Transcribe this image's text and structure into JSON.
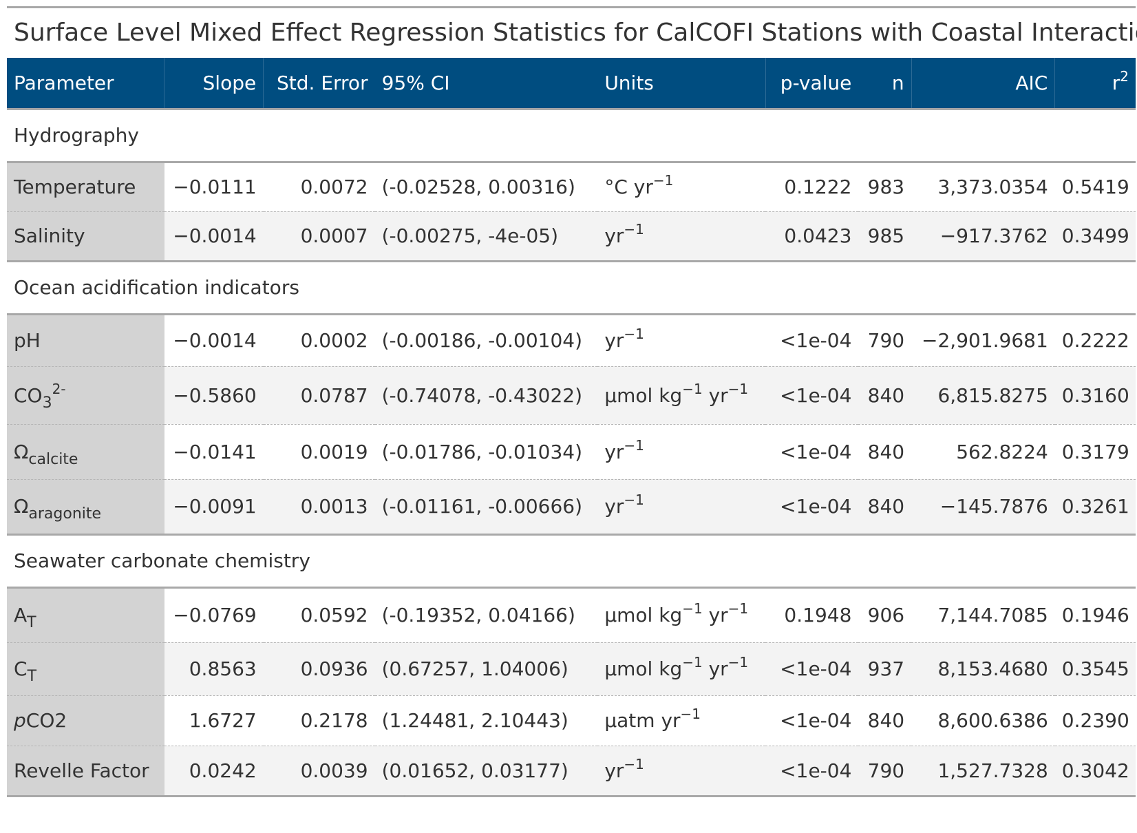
{
  "title": "Surface Level Mixed Effect Regression Statistics for CalCOFI Stations with Coastal Interaction",
  "headers": {
    "parameter": "Parameter",
    "slope": "Slope",
    "std_error": "Std. Error",
    "ci": "95% CI",
    "units": "Units",
    "p_value": "p-value",
    "n": "n",
    "aic": "AIC",
    "r2_base": "r",
    "r2_sup": "2"
  },
  "groups": [
    {
      "label": "Hydrography",
      "rows": [
        {
          "param": "Temperature",
          "slope": "−0.0111",
          "se": "0.0072",
          "ci": "(-0.02528, 0.00316)",
          "units_base": "°C yr",
          "units_sup": "−1",
          "p": "0.1222",
          "n": "983",
          "aic": "3,373.0354",
          "r2": "0.5419"
        },
        {
          "param": "Salinity",
          "slope": "−0.0014",
          "se": "0.0007",
          "ci": "(-0.00275, -4e-05)",
          "units_base": "yr",
          "units_sup": "−1",
          "p": "0.0423",
          "n": "985",
          "aic": "−917.3762",
          "r2": "0.3499"
        }
      ]
    },
    {
      "label": "Ocean acidification indicators",
      "rows": [
        {
          "param": "pH",
          "slope": "−0.0014",
          "se": "0.0002",
          "ci": "(-0.00186, -0.00104)",
          "units_base": "yr",
          "units_sup": "−1",
          "p": "<1e-04",
          "n": "790",
          "aic": "−2,901.9681",
          "r2": "0.2222"
        },
        {
          "param_base": "CO",
          "param_sub": "3",
          "param_sup": "2-",
          "slope": "−0.5860",
          "se": "0.0787",
          "ci": "(-0.74078, -0.43022)",
          "units_a": "μmol kg",
          "units_a_sup": "−1",
          "units_b": " yr",
          "units_b_sup": "−1",
          "p": "<1e-04",
          "n": "840",
          "aic": "6,815.8275",
          "r2": "0.3160"
        },
        {
          "param_base": "Ω",
          "param_sub": "calcite",
          "slope": "−0.0141",
          "se": "0.0019",
          "ci": "(-0.01786, -0.01034)",
          "units_base": "yr",
          "units_sup": "−1",
          "p": "<1e-04",
          "n": "840",
          "aic": "562.8224",
          "r2": "0.3179"
        },
        {
          "param_base": "Ω",
          "param_sub": "aragonite",
          "slope": "−0.0091",
          "se": "0.0013",
          "ci": "(-0.01161, -0.00666)",
          "units_base": "yr",
          "units_sup": "−1",
          "p": "<1e-04",
          "n": "840",
          "aic": "−145.7876",
          "r2": "0.3261"
        }
      ]
    },
    {
      "label": "Seawater carbonate chemistry",
      "rows": [
        {
          "param_base": "A",
          "param_sub": "T",
          "slope": "−0.0769",
          "se": "0.0592",
          "ci": "(-0.19352, 0.04166)",
          "units_a": "μmol kg",
          "units_a_sup": "−1",
          "units_b": " yr",
          "units_b_sup": "−1",
          "p": "0.1948",
          "n": "906",
          "aic": "7,144.7085",
          "r2": "0.1946"
        },
        {
          "param_base": "C",
          "param_sub": "T",
          "slope": "0.8563",
          "se": "0.0936",
          "ci": "(0.67257, 1.04006)",
          "units_a": "μmol kg",
          "units_a_sup": "−1",
          "units_b": " yr",
          "units_b_sup": "−1",
          "p": "<1e-04",
          "n": "937",
          "aic": "8,153.4680",
          "r2": "0.3545"
        },
        {
          "param_ital": "p",
          "param_rest": "CO2",
          "slope": "1.6727",
          "se": "0.2178",
          "ci": "(1.24481, 2.10443)",
          "units_base": "μatm yr",
          "units_sup": "−1",
          "p": "<1e-04",
          "n": "840",
          "aic": "8,600.6386",
          "r2": "0.2390"
        },
        {
          "param": "Revelle Factor",
          "slope": "0.0242",
          "se": "0.0039",
          "ci": "(0.01652, 0.03177)",
          "units_base": "yr",
          "units_sup": "−1",
          "p": "<1e-04",
          "n": "790",
          "aic": "1,527.7328",
          "r2": "0.3042"
        }
      ]
    }
  ]
}
